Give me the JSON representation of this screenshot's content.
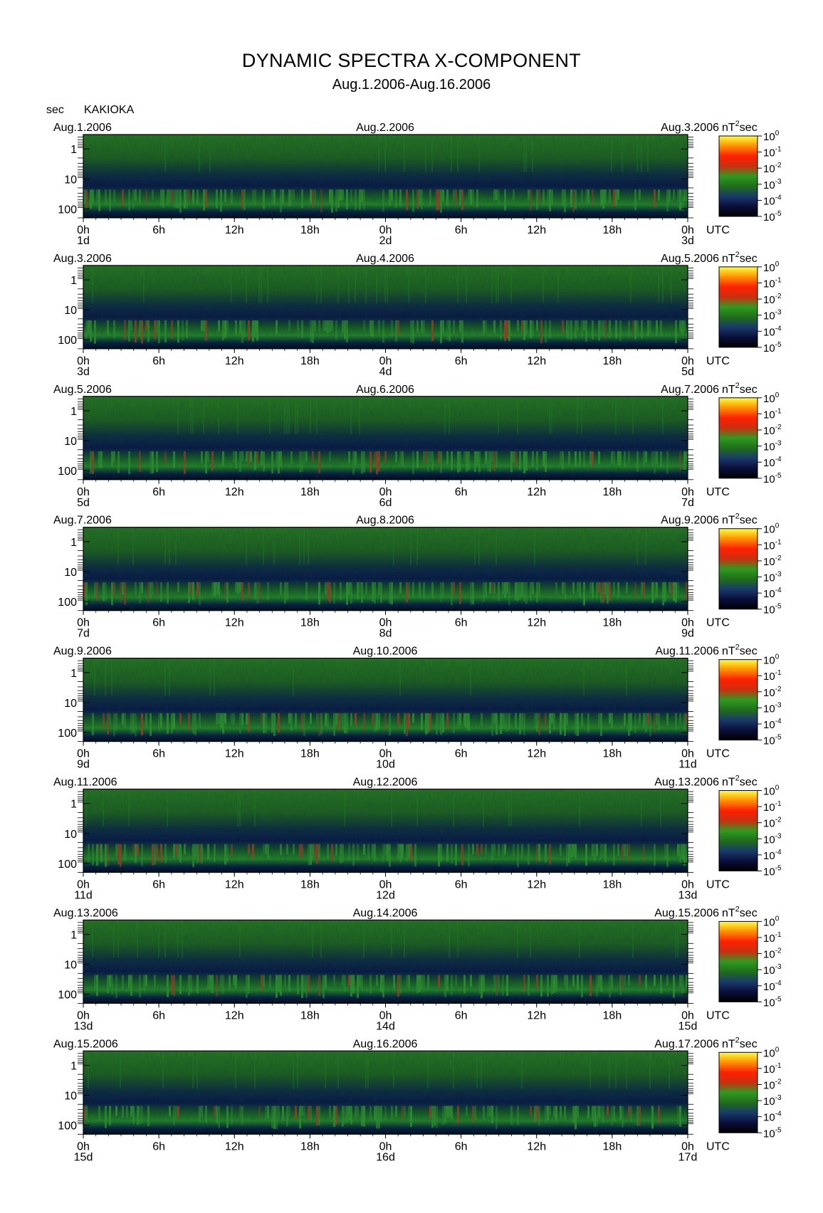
{
  "title": "DYNAMIC SPECTRA X-COMPONENT",
  "subtitle": "Aug.1.2006-Aug.16.2006",
  "y_unit": "sec",
  "station": "KAKIOKA",
  "colorbar_unit": "nT²sec",
  "colorbar_unit_base": "nT",
  "colorbar_unit_exp": "2",
  "colorbar_unit_tail": "sec",
  "x_unit_label": "UTC",
  "colors": {
    "background": "#000814",
    "low": "#0a0f3a",
    "mid": "#1f6e1a",
    "high": "#d01a10",
    "peak": "#ffe060"
  },
  "chart_data": {
    "type": "heatmap",
    "x_ticks": [
      "0h",
      "6h",
      "12h",
      "18h",
      "0h",
      "6h",
      "12h",
      "18h",
      "0h"
    ],
    "y_ticks": [
      "1",
      "10",
      "100"
    ],
    "y_scale": "log",
    "y_axis": "period (sec)",
    "colorbar": {
      "scale": "log",
      "base": "10",
      "exponents": [
        "0",
        "-1",
        "-2",
        "-3",
        "-4",
        "-5"
      ],
      "range": [
        1e-05,
        1
      ],
      "stops": [
        "#000000",
        "#0a0f3a",
        "#1a3a6a",
        "#1f6e1a",
        "#2f9a20",
        "#c83010",
        "#ff2000",
        "#ff9000",
        "#ffff40"
      ]
    },
    "panels": [
      {
        "start_date": "Aug.1.2006",
        "mid_date": "Aug.2.2006",
        "end_date": "Aug.3.2006",
        "day_labels": [
          "1d",
          "2d",
          "3d"
        ]
      },
      {
        "start_date": "Aug.3.2006",
        "mid_date": "Aug.4.2006",
        "end_date": "Aug.5.2006",
        "day_labels": [
          "3d",
          "4d",
          "5d"
        ]
      },
      {
        "start_date": "Aug.5.2006",
        "mid_date": "Aug.6.2006",
        "end_date": "Aug.7.2006",
        "day_labels": [
          "5d",
          "6d",
          "7d"
        ]
      },
      {
        "start_date": "Aug.7.2006",
        "mid_date": "Aug.8.2006",
        "end_date": "Aug.9.2006",
        "day_labels": [
          "7d",
          "8d",
          "9d"
        ]
      },
      {
        "start_date": "Aug.9.2006",
        "mid_date": "Aug.10.2006",
        "end_date": "Aug.11.2006",
        "day_labels": [
          "9d",
          "10d",
          "11d"
        ]
      },
      {
        "start_date": "Aug.11.2006",
        "mid_date": "Aug.12.2006",
        "end_date": "Aug.13.2006",
        "day_labels": [
          "11d",
          "12d",
          "13d"
        ]
      },
      {
        "start_date": "Aug.13.2006",
        "mid_date": "Aug.14.2006",
        "end_date": "Aug.15.2006",
        "day_labels": [
          "13d",
          "14d",
          "15d"
        ]
      },
      {
        "start_date": "Aug.15.2006",
        "mid_date": "Aug.16.2006",
        "end_date": "Aug.17.2006",
        "day_labels": [
          "15d",
          "16d",
          "17d"
        ]
      }
    ]
  }
}
